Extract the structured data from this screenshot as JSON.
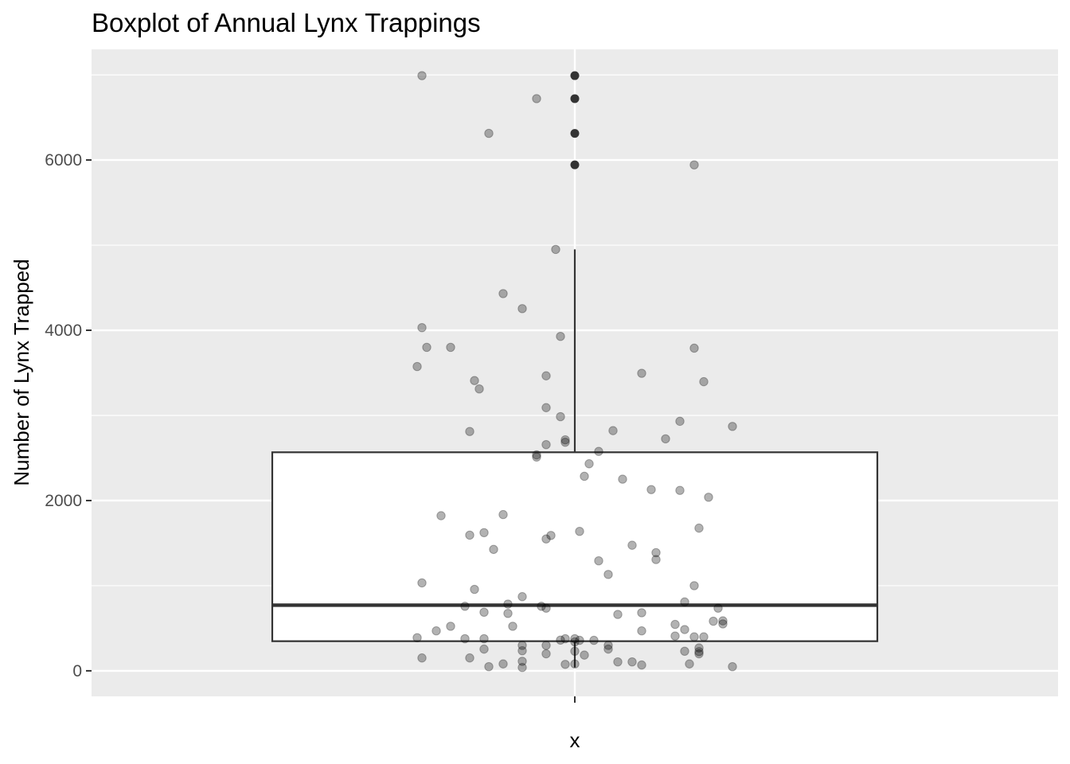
{
  "chart_data": {
    "type": "box",
    "title": "Boxplot of Annual Lynx Trappings",
    "xlabel": "",
    "ylabel": "Number of Lynx Trapped",
    "categories": [
      "x"
    ],
    "ylim": [
      -300,
      7300
    ],
    "yticks": [
      0,
      2000,
      4000,
      6000
    ],
    "ytick_labels": [
      "0",
      "2000",
      "4000",
      "6000"
    ],
    "grid": true,
    "colors": {
      "panel_background": "#ebebeb",
      "grid": "#ffffff",
      "box_fill": "#ffffff",
      "box_line": "#333333",
      "point": "#000000",
      "outlier": "#333333"
    },
    "box": {
      "min": 39,
      "q1": 348,
      "median": 771,
      "q3": 2567,
      "whisker_high": 4950,
      "outliers": [
        5943,
        6313,
        6721,
        6991
      ]
    },
    "jitter_points": [
      {
        "x": -0.32,
        "y": 6991
      },
      {
        "x": -0.08,
        "y": 6721
      },
      {
        "x": -0.18,
        "y": 6313
      },
      {
        "x": 0.25,
        "y": 5943
      },
      {
        "x": -0.04,
        "y": 4950
      },
      {
        "x": -0.15,
        "y": 4431
      },
      {
        "x": -0.11,
        "y": 4254
      },
      {
        "x": -0.32,
        "y": 4031
      },
      {
        "x": -0.03,
        "y": 3928
      },
      {
        "x": -0.31,
        "y": 3800
      },
      {
        "x": -0.26,
        "y": 3800
      },
      {
        "x": 0.25,
        "y": 3790
      },
      {
        "x": -0.33,
        "y": 3574
      },
      {
        "x": -0.06,
        "y": 3465
      },
      {
        "x": 0.14,
        "y": 3495
      },
      {
        "x": 0.27,
        "y": 3396
      },
      {
        "x": -0.21,
        "y": 3409
      },
      {
        "x": -0.2,
        "y": 3311
      },
      {
        "x": -0.06,
        "y": 3091
      },
      {
        "x": -0.03,
        "y": 2985
      },
      {
        "x": 0.22,
        "y": 2931
      },
      {
        "x": 0.33,
        "y": 2871
      },
      {
        "x": 0.08,
        "y": 2821
      },
      {
        "x": -0.22,
        "y": 2811
      },
      {
        "x": 0.19,
        "y": 2725
      },
      {
        "x": -0.02,
        "y": 2713
      },
      {
        "x": -0.02,
        "y": 2685
      },
      {
        "x": -0.06,
        "y": 2657
      },
      {
        "x": 0.05,
        "y": 2577
      },
      {
        "x": -0.08,
        "y": 2536
      },
      {
        "x": -0.08,
        "y": 2511
      },
      {
        "x": 0.03,
        "y": 2432
      },
      {
        "x": 0.02,
        "y": 2285
      },
      {
        "x": 0.1,
        "y": 2251
      },
      {
        "x": 0.16,
        "y": 2129
      },
      {
        "x": 0.22,
        "y": 2119
      },
      {
        "x": 0.28,
        "y": 2039
      },
      {
        "x": -0.15,
        "y": 1835
      },
      {
        "x": -0.28,
        "y": 1822
      },
      {
        "x": 0.26,
        "y": 1676
      },
      {
        "x": 0.01,
        "y": 1638
      },
      {
        "x": -0.19,
        "y": 1623
      },
      {
        "x": -0.22,
        "y": 1594
      },
      {
        "x": -0.05,
        "y": 1590
      },
      {
        "x": -0.06,
        "y": 1549
      },
      {
        "x": 0.12,
        "y": 1475
      },
      {
        "x": -0.17,
        "y": 1426
      },
      {
        "x": 0.17,
        "y": 1388
      },
      {
        "x": 0.17,
        "y": 1307
      },
      {
        "x": 0.05,
        "y": 1292
      },
      {
        "x": 0.07,
        "y": 1132
      },
      {
        "x": -0.32,
        "y": 1033
      },
      {
        "x": 0.25,
        "y": 1000
      },
      {
        "x": -0.21,
        "y": 957
      },
      {
        "x": -0.11,
        "y": 871
      },
      {
        "x": 0.23,
        "y": 809
      },
      {
        "x": -0.14,
        "y": 784
      },
      {
        "x": -0.23,
        "y": 758
      },
      {
        "x": -0.07,
        "y": 758
      },
      {
        "x": 0.3,
        "y": 736
      },
      {
        "x": -0.06,
        "y": 736
      },
      {
        "x": -0.19,
        "y": 688
      },
      {
        "x": 0.14,
        "y": 682
      },
      {
        "x": -0.14,
        "y": 674
      },
      {
        "x": 0.09,
        "y": 662
      },
      {
        "x": 0.31,
        "y": 587
      },
      {
        "x": 0.29,
        "y": 583
      },
      {
        "x": 0.31,
        "y": 551
      },
      {
        "x": 0.21,
        "y": 545
      },
      {
        "x": -0.26,
        "y": 523
      },
      {
        "x": -0.13,
        "y": 523
      },
      {
        "x": 0.23,
        "y": 485
      },
      {
        "x": -0.29,
        "y": 469
      },
      {
        "x": 0.14,
        "y": 469
      },
      {
        "x": 0.21,
        "y": 409
      },
      {
        "x": 0.25,
        "y": 399
      },
      {
        "x": -0.33,
        "y": 389
      },
      {
        "x": 0.27,
        "y": 399
      },
      {
        "x": -0.23,
        "y": 377
      },
      {
        "x": -0.19,
        "y": 377
      },
      {
        "x": 0.0,
        "y": 377
      },
      {
        "x": -0.02,
        "y": 377
      },
      {
        "x": -0.03,
        "y": 361
      },
      {
        "x": 0.04,
        "y": 358
      },
      {
        "x": 0.01,
        "y": 358
      },
      {
        "x": 0.0,
        "y": 340
      },
      {
        "x": -0.11,
        "y": 299
      },
      {
        "x": -0.06,
        "y": 299
      },
      {
        "x": 0.07,
        "y": 299
      },
      {
        "x": 0.26,
        "y": 269
      },
      {
        "x": 0.07,
        "y": 255
      },
      {
        "x": -0.19,
        "y": 255
      },
      {
        "x": -0.11,
        "y": 236
      },
      {
        "x": 0.0,
        "y": 230
      },
      {
        "x": 0.23,
        "y": 230
      },
      {
        "x": 0.26,
        "y": 225
      },
      {
        "x": 0.26,
        "y": 200
      },
      {
        "x": -0.06,
        "y": 200
      },
      {
        "x": 0.02,
        "y": 185
      },
      {
        "x": -0.32,
        "y": 151
      },
      {
        "x": -0.22,
        "y": 151
      },
      {
        "x": -0.11,
        "y": 112
      },
      {
        "x": 0.09,
        "y": 105
      },
      {
        "x": 0.12,
        "y": 105
      },
      {
        "x": -0.15,
        "y": 81
      },
      {
        "x": 0.24,
        "y": 81
      },
      {
        "x": -0.02,
        "y": 76
      },
      {
        "x": 0.0,
        "y": 80
      },
      {
        "x": 0.14,
        "y": 68
      },
      {
        "x": 0.33,
        "y": 49
      },
      {
        "x": -0.18,
        "y": 49
      },
      {
        "x": -0.11,
        "y": 39
      }
    ]
  }
}
